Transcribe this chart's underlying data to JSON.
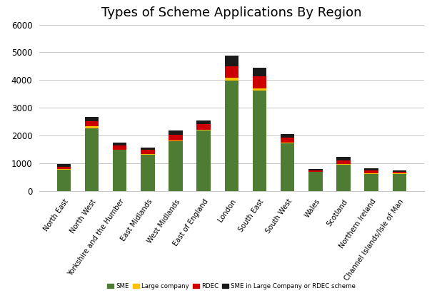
{
  "title": "Types of Scheme Applications By Region",
  "regions": [
    "North East",
    "North West",
    "Yorkshire and the Humber",
    "East Midlands",
    "West Midlands",
    "East of England",
    "London",
    "South East",
    "South West",
    "Wales",
    "Scotland",
    "Northern Ireland",
    "Channel Islands/Isle of Man"
  ],
  "SME": [
    770,
    2270,
    1475,
    1310,
    1800,
    2170,
    3980,
    3630,
    1720,
    680,
    950,
    620,
    615
  ],
  "Large_company": [
    20,
    60,
    20,
    20,
    20,
    35,
    100,
    70,
    30,
    10,
    20,
    30,
    15
  ],
  "RDEC": [
    90,
    195,
    145,
    155,
    200,
    215,
    425,
    430,
    185,
    55,
    125,
    85,
    55
  ],
  "SME_in_Large": [
    85,
    155,
    95,
    70,
    155,
    130,
    375,
    305,
    115,
    50,
    135,
    80,
    60
  ],
  "colors": {
    "SME": "#4d7c32",
    "Large_company": "#ffc000",
    "RDEC": "#cc0000",
    "SME_in_Large": "#1a1a1a"
  },
  "ylim": [
    0,
    6000
  ],
  "yticks": [
    0,
    1000,
    2000,
    3000,
    4000,
    5000,
    6000
  ],
  "background_color": "#ffffff",
  "grid_color": "#c8c8c8",
  "title_fontsize": 13
}
